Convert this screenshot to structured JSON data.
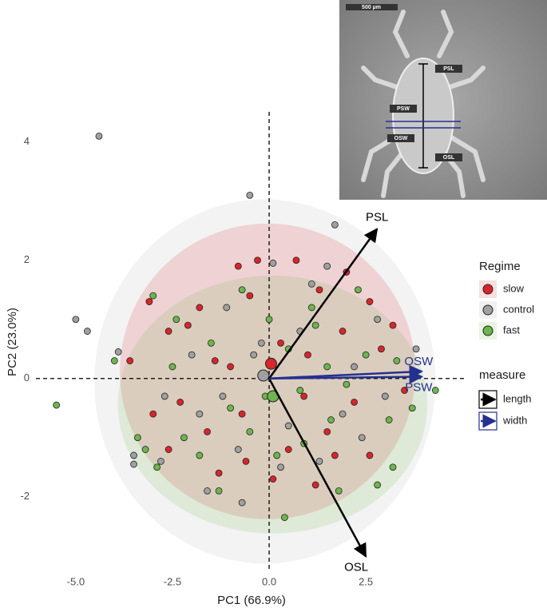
{
  "chart_data": {
    "type": "scatter",
    "x_label": "PC1 (66.9%)",
    "y_label": "PC2 (23.0%)",
    "xlim": [
      -6.03,
      5.12
    ],
    "ylim": [
      -3.26,
      4.51
    ],
    "xticks": [
      {
        "value": -5,
        "label": "-5.0"
      },
      {
        "value": -2.5,
        "label": "-2.5"
      },
      {
        "value": 0,
        "label": "0.0"
      },
      2.5
    ],
    "yticks": [
      4,
      2,
      0,
      -2
    ],
    "grid": true,
    "legend_title": "Regime",
    "series": [
      {
        "name": "slow",
        "color": "#d7262b",
        "ellipse": {
          "cx": -0.04,
          "cy": 0.12,
          "rx": 3.82,
          "ry": 2.5
        },
        "mean": {
          "x": 0.05,
          "y": 0.25
        },
        "x": [
          -3.1,
          -2.6,
          -3.6,
          -1.8,
          -1.4,
          -0.8,
          -0.5,
          0.7,
          1.3,
          1.9,
          2.6,
          2.9,
          3.2,
          2.2,
          1.5,
          0.5,
          -0.6,
          -1.6,
          -2.3,
          -3.0,
          -1.0,
          0.3,
          1.0,
          2.6,
          1.2,
          0.1,
          -1.3,
          -2.6,
          -0.3,
          0.9,
          2.0,
          -2.1,
          1.7,
          -0.7,
          3.5
        ],
        "y": [
          1.3,
          0.8,
          0.3,
          1.2,
          0.3,
          1.9,
          1.4,
          2.0,
          1.5,
          0.8,
          1.3,
          0.5,
          0.9,
          -0.4,
          -0.9,
          -1.2,
          -1.4,
          -0.9,
          -0.4,
          -0.6,
          0.2,
          0.6,
          0.4,
          -1.3,
          -1.8,
          -1.7,
          -1.6,
          -1.2,
          2.0,
          -0.3,
          1.8,
          0.9,
          -1.3,
          -0.6,
          -0.2
        ]
      },
      {
        "name": "control",
        "color": "#a0a0a0",
        "ellipse": {
          "cx": -0.11,
          "cy": -0.05,
          "rx": 4.41,
          "ry": 3.08
        },
        "mean": {
          "x": -0.15,
          "y": 0.05
        },
        "x": [
          -4.4,
          -0.5,
          -5.0,
          -4.7,
          -3.9,
          -3.5,
          -3.5,
          -2.8,
          -1.6,
          -0.7,
          1.7,
          1.5,
          0.1,
          -1.1,
          -2.0,
          -2.7,
          0.8,
          1.9,
          2.4,
          3.8,
          3.0,
          -0.2,
          -1.2,
          0.5,
          1.3,
          -0.8,
          2.8,
          -1.8,
          1.1,
          0.3,
          -0.4,
          2.2
        ],
        "y": [
          4.1,
          3.1,
          1.0,
          0.8,
          0.45,
          -1.3,
          -1.45,
          -1.4,
          -1.9,
          -2.1,
          2.6,
          1.9,
          1.95,
          1.2,
          0.4,
          -0.3,
          0.8,
          -0.6,
          -1.0,
          0.5,
          -0.3,
          0.6,
          -0.3,
          -0.8,
          -1.4,
          -1.2,
          1.0,
          -0.6,
          1.6,
          -1.5,
          0.4,
          0.2
        ]
      },
      {
        "name": "fast",
        "color": "#6db64c",
        "ellipse": {
          "cx": 0.09,
          "cy": -0.44,
          "rx": 4.0,
          "ry": 2.18
        },
        "mean": {
          "x": 0.1,
          "y": -0.3
        },
        "x": [
          -5.5,
          -3.4,
          -3.2,
          -4.0,
          -3.0,
          -2.9,
          -2.5,
          -2.2,
          -1.5,
          -1.0,
          -0.5,
          0.2,
          0.4,
          0.8,
          1.2,
          1.5,
          2.0,
          2.5,
          3.1,
          3.3,
          3.7,
          4.3,
          3.2,
          2.8,
          1.8,
          0.9,
          -0.1,
          0.5,
          -1.8,
          -2.4,
          1.1,
          -0.7,
          0.0,
          1.6,
          2.3,
          -1.3
        ],
        "y": [
          -0.45,
          -1.0,
          -1.2,
          0.3,
          1.4,
          -1.5,
          0.2,
          -1.0,
          0.6,
          -0.5,
          -0.9,
          -1.3,
          -2.35,
          -0.2,
          0.9,
          0.2,
          -0.1,
          0.4,
          -0.7,
          0.3,
          -0.5,
          -0.2,
          -1.5,
          -1.8,
          -1.9,
          -1.1,
          -0.3,
          0.5,
          -1.3,
          1.0,
          1.2,
          1.5,
          1.0,
          -0.7,
          1.5,
          -1.9
        ]
      }
    ],
    "measure_title": "measure",
    "measures": [
      {
        "name": "length",
        "color": "#000000",
        "arrows": [
          {
            "name": "PSL",
            "x": 2.79,
            "y": 2.53
          },
          {
            "name": "OSL",
            "x": 2.5,
            "y": -3.01
          }
        ]
      },
      {
        "name": "width",
        "color": "#25308f",
        "arrows": [
          {
            "name": "OSW",
            "x": 3.95,
            "y": 0.12
          },
          {
            "name": "PSW",
            "x": 3.95,
            "y": 0.03
          }
        ]
      }
    ],
    "inset": {
      "scale_bar": "500 µm",
      "labels": [
        "PSL",
        "PSW",
        "OSW",
        "OSL"
      ]
    }
  }
}
